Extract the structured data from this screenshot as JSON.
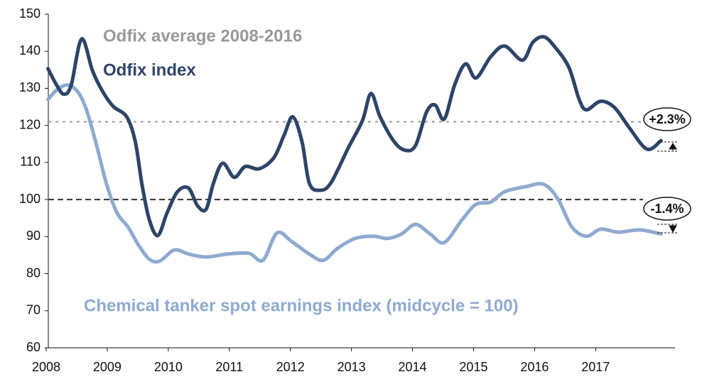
{
  "chart_data": {
    "type": "line",
    "series": [
      {
        "name": "Odfix index",
        "color": "#2e4468",
        "x": [
          2008.03,
          2008.17,
          2008.29,
          2008.41,
          2008.58,
          2008.76,
          2008.93,
          2009.1,
          2009.32,
          2009.46,
          2009.57,
          2009.69,
          2009.83,
          2009.98,
          2010.15,
          2010.33,
          2010.48,
          2010.62,
          2010.74,
          2010.89,
          2011.08,
          2011.26,
          2011.49,
          2011.73,
          2011.9,
          2012.04,
          2012.19,
          2012.31,
          2012.48,
          2012.66,
          2012.95,
          2013.18,
          2013.32,
          2013.47,
          2013.7,
          2013.88,
          2014.05,
          2014.23,
          2014.37,
          2014.52,
          2014.69,
          2014.87,
          2015.04,
          2015.28,
          2015.51,
          2015.8,
          2015.97,
          2016.15,
          2016.32,
          2016.56,
          2016.73,
          2016.85,
          2017.08,
          2017.31,
          2017.55,
          2017.84,
          2018.07
        ],
        "values": [
          135.3,
          130.9,
          128.4,
          130.9,
          143.3,
          134.7,
          129,
          125.1,
          122.3,
          115.6,
          104,
          94.5,
          90.3,
          96.4,
          102.1,
          103.1,
          98.3,
          97.4,
          104.4,
          109.8,
          106,
          108.9,
          108.3,
          111.3,
          117.5,
          122.3,
          115.6,
          104.4,
          102.5,
          104.4,
          114,
          121.3,
          128.6,
          122.3,
          115.6,
          113.3,
          114.6,
          123.6,
          125.5,
          121.7,
          130.9,
          136.6,
          132.8,
          138.5,
          141.4,
          137.6,
          142.4,
          143.9,
          141.4,
          135.7,
          127,
          124.2,
          126.5,
          124.8,
          119.4,
          113.6,
          115.9
        ]
      },
      {
        "name": "Chemical tanker spot earnings index (midcycle = 100)",
        "color": "#8eaad0",
        "x": [
          2008.03,
          2008.17,
          2008.35,
          2008.52,
          2008.66,
          2008.81,
          2008.99,
          2009.16,
          2009.34,
          2009.51,
          2009.69,
          2009.86,
          2010.1,
          2010.33,
          2010.62,
          2010.97,
          2011.32,
          2011.55,
          2011.78,
          2012.02,
          2012.31,
          2012.54,
          2012.77,
          2013.06,
          2013.36,
          2013.59,
          2013.82,
          2014.05,
          2014.29,
          2014.52,
          2014.81,
          2015.04,
          2015.28,
          2015.51,
          2015.86,
          2016.15,
          2016.38,
          2016.61,
          2016.85,
          2017.08,
          2017.37,
          2017.72,
          2018.07
        ],
        "values": [
          127,
          129.5,
          130.9,
          129,
          124.2,
          115.6,
          104.1,
          96.4,
          92.6,
          87.8,
          83.9,
          83.4,
          86.4,
          85.3,
          84.5,
          85.3,
          85.5,
          83.6,
          91,
          88.7,
          85.3,
          83.6,
          86.8,
          89.5,
          90.1,
          89.5,
          90.7,
          93.3,
          90.7,
          88.4,
          94.5,
          98.7,
          99.3,
          102.1,
          103.5,
          104.1,
          100.2,
          92.6,
          90.1,
          92,
          91.2,
          91.8,
          90.7
        ]
      }
    ],
    "reference_lines": [
      {
        "name": "Odfix average 2008-2016",
        "value": 121,
        "color": "#999999"
      },
      {
        "value": 100,
        "color": "#333333"
      }
    ],
    "annotations": [
      "+2.3%",
      "-1.4%"
    ],
    "xlim": [
      2008,
      2018.3
    ],
    "xticks": [
      2008,
      2009,
      2010,
      2011,
      2012,
      2013,
      2014,
      2015,
      2016,
      2017
    ],
    "ylim": [
      60,
      150
    ],
    "yticks": [
      60,
      70,
      80,
      90,
      100,
      110,
      120,
      130,
      140,
      150
    ]
  }
}
